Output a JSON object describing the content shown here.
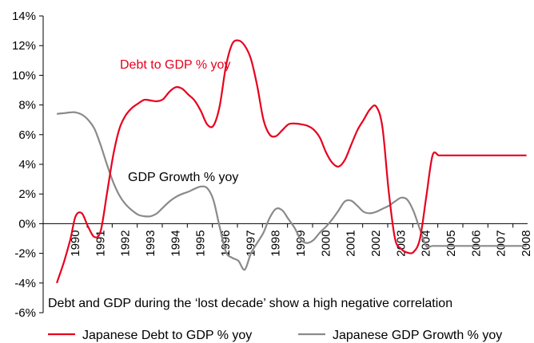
{
  "chart_data": {
    "type": "line",
    "ylim": [
      -6,
      14
    ],
    "yticks": [
      -6,
      -4,
      -2,
      0,
      2,
      4,
      6,
      8,
      10,
      12,
      14
    ],
    "ytick_labels": [
      "-6%",
      "-4%",
      "-2%",
      "0%",
      "2%",
      "4%",
      "6%",
      "8%",
      "10%",
      "12%",
      "14%"
    ],
    "xlim": [
      1989.3,
      2008.3
    ],
    "xticks": [
      1990,
      1991,
      1992,
      1993,
      1994,
      1995,
      1996,
      1997,
      1998,
      1999,
      2000,
      2001,
      2002,
      2003,
      2004,
      2005,
      2006,
      2007,
      2008
    ],
    "xtick_labels": [
      "1990",
      "1991",
      "1992",
      "1993",
      "1994",
      "1995",
      "1996",
      "1997",
      "1998",
      "1999",
      "2000",
      "2001",
      "2002",
      "2003",
      "2004",
      "2005",
      "2006",
      "2007",
      "2008"
    ],
    "grid": false,
    "legend_position": "bottom",
    "annotations": [
      {
        "text": "Debt to GDP % yoy",
        "series": 0
      },
      {
        "text": "GDP Growth % yoy",
        "series": 1
      },
      {
        "text": "Debt and GDP during the ‘lost decade’ show a high negative correlation",
        "series": null
      }
    ],
    "series": [
      {
        "name": "Japanese Debt to GDP % yoy",
        "color": "#e8001e",
        "x": [
          1989.3,
          1989.6,
          1989.85,
          1990.05,
          1990.3,
          1990.55,
          1990.8,
          1991.05,
          1991.3,
          1991.55,
          1991.8,
          1992.05,
          1992.3,
          1992.55,
          1992.8,
          1993.05,
          1993.3,
          1993.55,
          1993.8,
          1994.05,
          1994.3,
          1994.55,
          1994.8,
          1995.05,
          1995.3,
          1995.55,
          1995.8,
          1996.05,
          1996.3,
          1996.55,
          1996.8,
          1997.05,
          1997.3,
          1997.55,
          1997.8,
          1998.05,
          1998.3,
          1998.55,
          1998.8,
          1999.05,
          1999.3,
          1999.55,
          1999.8,
          2000.05,
          2000.3,
          2000.55,
          2000.8,
          2001.05,
          2001.3,
          2001.55,
          2001.8,
          2002.05,
          2002.3,
          2002.55,
          2002.8,
          2003.05,
          2003.3,
          2003.55,
          2003.8,
          2004.05,
          2004.3,
          2004.55,
          2004.8,
          2005.05,
          2005.3,
          2005.55,
          2005.8,
          2006.05,
          2006.3,
          2006.55,
          2006.8,
          2007.05,
          2007.3,
          2007.55,
          2007.8,
          2008.05,
          2008.3
        ],
        "values": [
          -4.0,
          -2.5,
          -1.0,
          0.5,
          0.7,
          -0.2,
          -0.9,
          -0.5,
          2.0,
          4.6,
          6.4,
          7.3,
          7.8,
          8.1,
          8.35,
          8.3,
          8.25,
          8.4,
          8.9,
          9.2,
          9.1,
          8.7,
          8.3,
          7.6,
          6.7,
          6.6,
          7.9,
          10.6,
          12.1,
          12.35,
          12.0,
          11.1,
          9.3,
          7.0,
          6.0,
          5.9,
          6.3,
          6.7,
          6.75,
          6.7,
          6.6,
          6.35,
          5.8,
          4.8,
          4.1,
          3.85,
          4.3,
          5.3,
          6.3,
          7.0,
          7.7,
          7.9,
          6.5,
          2.2,
          -1.0,
          -1.7,
          -1.95,
          -1.9,
          -1.0,
          1.8,
          4.6,
          4.6,
          4.6,
          4.6,
          4.6,
          4.6,
          4.6,
          4.6,
          4.6,
          4.6,
          4.6,
          4.6,
          4.6,
          4.6,
          4.6,
          4.6,
          4.6
        ]
      },
      {
        "name": "Japanese GDP Growth % yoy",
        "color": "#8a8a8a",
        "x": [
          1989.3,
          1989.6,
          1989.85,
          1990.05,
          1990.3,
          1990.55,
          1990.8,
          1991.05,
          1991.3,
          1991.55,
          1991.8,
          1992.05,
          1992.3,
          1992.55,
          1992.8,
          1993.05,
          1993.3,
          1993.55,
          1993.8,
          1994.05,
          1994.3,
          1994.55,
          1994.8,
          1995.05,
          1995.3,
          1995.55,
          1995.8,
          1996.05,
          1996.3,
          1996.55,
          1996.8,
          1997.05,
          1997.3,
          1997.55,
          1997.8,
          1998.05,
          1998.3,
          1998.55,
          1998.8,
          1999.05,
          1999.3,
          1999.55,
          1999.8,
          2000.05,
          2000.3,
          2000.55,
          2000.8,
          2001.05,
          2001.3,
          2001.55,
          2001.8,
          2002.05,
          2002.3,
          2002.55,
          2002.8,
          2003.05,
          2003.3,
          2003.55,
          2003.8,
          2004.05,
          2004.3,
          2004.55,
          2004.8,
          2005.05,
          2005.3,
          2005.55,
          2005.8,
          2006.05,
          2006.3,
          2006.55,
          2006.8,
          2007.05,
          2007.3,
          2007.55,
          2007.8,
          2008.05,
          2008.3
        ],
        "values": [
          7.4,
          7.45,
          7.5,
          7.5,
          7.35,
          7.0,
          6.4,
          5.3,
          4.0,
          2.8,
          1.9,
          1.3,
          0.9,
          0.6,
          0.5,
          0.5,
          0.7,
          1.1,
          1.5,
          1.8,
          2.0,
          2.15,
          2.35,
          2.5,
          2.4,
          1.6,
          -0.2,
          -1.9,
          -2.3,
          -2.5,
          -3.1,
          -2.0,
          -1.3,
          -0.6,
          0.4,
          1.0,
          0.9,
          0.3,
          -0.3,
          -1.1,
          -1.3,
          -1.1,
          -0.6,
          -0.2,
          0.3,
          0.9,
          1.5,
          1.55,
          1.2,
          0.8,
          0.7,
          0.8,
          1.0,
          1.2,
          1.5,
          1.75,
          1.6,
          0.8,
          -0.4,
          -1.5,
          -1.5,
          -1.5,
          -1.5,
          -1.5,
          -1.5,
          -1.5,
          -1.5,
          -1.5,
          -1.5,
          -1.5,
          -1.5,
          -1.5,
          -1.5,
          -1.5,
          -1.5,
          -1.5,
          -1.5
        ]
      }
    ]
  }
}
